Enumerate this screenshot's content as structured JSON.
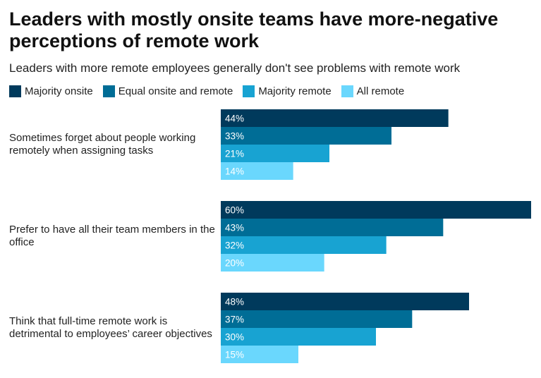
{
  "title": "Leaders with mostly onsite teams have more-negative perceptions of remote work",
  "subtitle": "Leaders with more remote employees generally don't see problems with remote work",
  "legend": [
    {
      "label": "Majority onsite",
      "color": "#003a5c"
    },
    {
      "label": "Equal onsite and remote",
      "color": "#006d96"
    },
    {
      "label": "Majority remote",
      "color": "#18a3d2"
    },
    {
      "label": "All remote",
      "color": "#6ad7fd"
    }
  ],
  "chart_data": {
    "type": "bar",
    "orientation": "horizontal",
    "categories": [
      "Sometimes forget about people working remotely when assigning tasks",
      "Prefer to have all their team members in the office",
      "Think that full-time remote work is detrimental to employees’ career objectives"
    ],
    "series": [
      {
        "name": "Majority onsite",
        "values": [
          44,
          60,
          48
        ],
        "labels": [
          "44%",
          "60%",
          "48%"
        ]
      },
      {
        "name": "Equal onsite and remote",
        "values": [
          33,
          43,
          37
        ],
        "labels": [
          "33%",
          "43%",
          "37%"
        ]
      },
      {
        "name": "Majority remote",
        "values": [
          21,
          32,
          30
        ],
        "labels": [
          "21%",
          "32%",
          "30%"
        ]
      },
      {
        "name": "All remote",
        "values": [
          14,
          20,
          15
        ],
        "labels": [
          "14%",
          "20%",
          "15%"
        ]
      }
    ],
    "xlim": [
      0,
      60
    ],
    "grid": false,
    "legend_position": "top-left"
  }
}
